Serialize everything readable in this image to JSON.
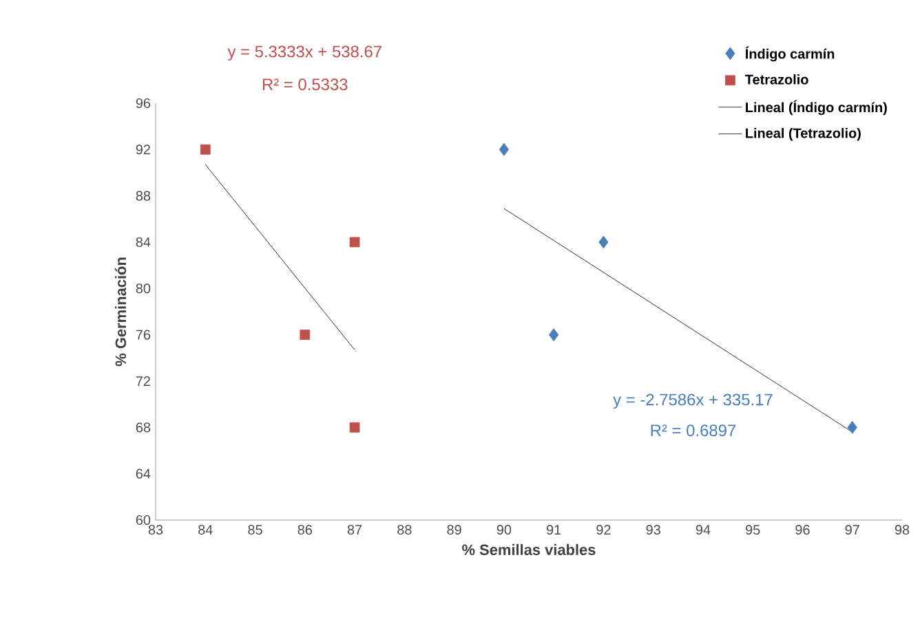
{
  "chart_data": {
    "type": "scatter",
    "xlabel": "% Semillas viables",
    "ylabel": "% Germinación",
    "xlim": [
      83,
      98
    ],
    "xticks": [
      83,
      84,
      85,
      86,
      87,
      88,
      89,
      90,
      91,
      92,
      93,
      94,
      95,
      96,
      97,
      98
    ],
    "ylim": [
      60,
      96
    ],
    "yticks": [
      60,
      64,
      68,
      72,
      76,
      80,
      84,
      88,
      92,
      96
    ],
    "grid": false,
    "legend": "top right",
    "series": [
      {
        "name": "Índigo carmín",
        "marker": "diamond",
        "color": "#4a7ebb",
        "x": [
          90,
          91,
          92,
          97
        ],
        "values": [
          92,
          76,
          84,
          68
        ]
      },
      {
        "name": "Tetrazolio",
        "marker": "square",
        "color": "#c0504d",
        "x": [
          84,
          86,
          87,
          87
        ],
        "values": [
          92,
          76,
          84,
          68
        ]
      },
      {
        "name": "Lineal (Índigo carmín)",
        "type": "line",
        "marker": "none",
        "color": "#000000",
        "x": [
          90,
          97
        ],
        "values": [
          86.9,
          67.6
        ]
      },
      {
        "name": "Lineal (Tetrazolio)",
        "type": "line",
        "marker": "none",
        "color": "#000000",
        "x": [
          84,
          87
        ],
        "values": [
          90.7,
          74.7
        ]
      }
    ],
    "annotations": [
      "y =  5.3333x + 538.67",
      "R² = 0.5333",
      "y = -2.7586x + 335.17",
      "R² = 0.6897"
    ]
  }
}
